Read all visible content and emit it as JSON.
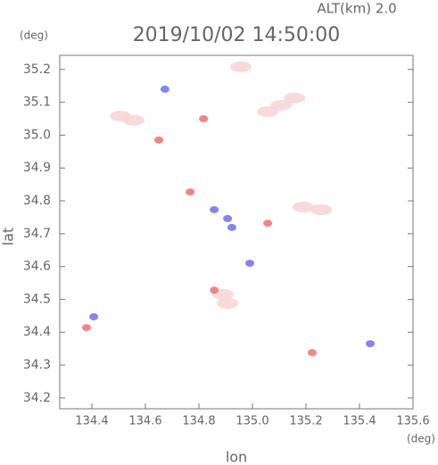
{
  "chart_data": {
    "type": "scatter",
    "title": "2019/10/02 14:50:00",
    "subtitle": "ALT(km) 2.0",
    "x_label": "lon",
    "y_label": "lat",
    "x_unit": "(deg)",
    "y_unit": "(deg)",
    "xlim": [
      134.28,
      135.6
    ],
    "ylim": [
      34.167,
      35.243
    ],
    "xticks": [
      134.4,
      134.6,
      134.8,
      {
        "value": 135.0,
        "label": "135.0"
      },
      135.2,
      135.4,
      135.6
    ],
    "yticks": [
      34.2,
      34.3,
      34.4,
      34.5,
      34.6,
      34.7,
      34.8,
      34.9,
      {
        "value": 35.0,
        "label": "35.0"
      },
      35.1,
      35.2
    ],
    "series": [
      {
        "color": "#f6d4d4",
        "x": [
          135.107,
          135.157,
          135.057,
          134.507,
          134.557,
          135.19,
          135.257,
          134.89,
          134.907,
          134.957
        ],
        "values": [
          35.091,
          35.113,
          35.072,
          35.058,
          35.045,
          34.781,
          34.773,
          34.515,
          34.488,
          35.208
        ]
      },
      {
        "color": "#7070f0",
        "x": [
          134.673,
          134.407,
          135.44,
          134.923,
          134.99,
          134.857,
          134.907
        ],
        "values": [
          35.14,
          34.447,
          34.365,
          34.719,
          34.61,
          34.773,
          34.746
        ]
      },
      {
        "color": "#f07070",
        "x": [
          134.817,
          134.65,
          134.857,
          134.767,
          135.057,
          135.223,
          134.38
        ],
        "values": [
          35.05,
          34.985,
          34.528,
          34.827,
          34.732,
          34.338,
          34.414
        ]
      }
    ]
  }
}
